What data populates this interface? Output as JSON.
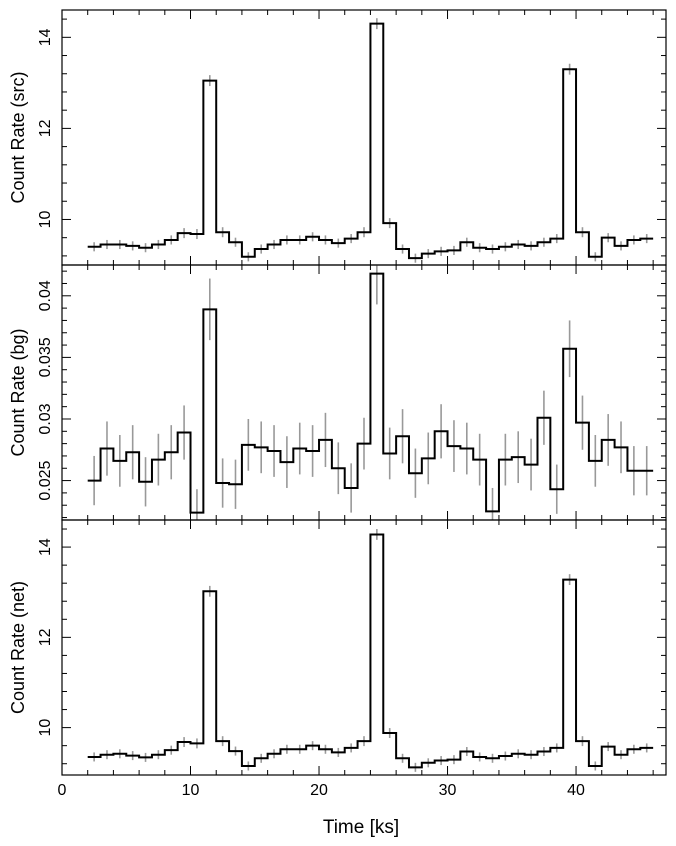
{
  "figure": {
    "xlabel": "Time [ks]",
    "line_color": "#000000",
    "error_color": "#999999"
  },
  "chart_data": [
    {
      "type": "line",
      "title": "",
      "xlabel": "Time [ks]",
      "ylabel": "Count Rate (src)",
      "xlim": [
        0,
        47
      ],
      "ylim": [
        9.0,
        14.6
      ],
      "xticks": [
        0,
        10,
        20,
        30,
        40
      ],
      "yticks": [
        10,
        12,
        14
      ],
      "yticks_label": [
        "10",
        "12",
        "14"
      ],
      "bin_width": 1,
      "x": [
        2.5,
        3.5,
        4.5,
        5.5,
        6.5,
        7.5,
        8.5,
        9.5,
        10.5,
        11.5,
        12.5,
        13.5,
        14.5,
        15.5,
        16.5,
        17.5,
        18.5,
        19.5,
        20.5,
        21.5,
        22.5,
        23.5,
        24.5,
        25.5,
        26.5,
        27.5,
        28.5,
        29.5,
        30.5,
        31.5,
        32.5,
        33.5,
        34.5,
        35.5,
        36.5,
        37.5,
        38.5,
        39.5,
        40.5,
        41.5,
        42.5,
        43.5,
        44.5,
        45.5
      ],
      "y": [
        9.4,
        9.45,
        9.45,
        9.42,
        9.38,
        9.45,
        9.55,
        9.7,
        9.68,
        13.05,
        9.72,
        9.5,
        9.18,
        9.35,
        9.45,
        9.55,
        9.55,
        9.62,
        9.55,
        9.48,
        9.58,
        9.72,
        14.3,
        9.92,
        9.35,
        9.15,
        9.25,
        9.3,
        9.32,
        9.5,
        9.38,
        9.35,
        9.4,
        9.45,
        9.42,
        9.5,
        9.58,
        13.3,
        9.72,
        9.18,
        9.6,
        9.42,
        9.55,
        9.58
      ],
      "yerr": [
        0.1,
        0.1,
        0.1,
        0.1,
        0.1,
        0.1,
        0.1,
        0.11,
        0.11,
        0.12,
        0.11,
        0.1,
        0.1,
        0.1,
        0.1,
        0.1,
        0.1,
        0.1,
        0.1,
        0.1,
        0.1,
        0.11,
        0.12,
        0.11,
        0.1,
        0.1,
        0.1,
        0.1,
        0.1,
        0.1,
        0.1,
        0.1,
        0.1,
        0.1,
        0.1,
        0.1,
        0.1,
        0.12,
        0.11,
        0.1,
        0.1,
        0.1,
        0.1,
        0.1
      ]
    },
    {
      "type": "line",
      "title": "",
      "xlabel": "Time [ks]",
      "ylabel": "Count Rate (bg)",
      "xlim": [
        0,
        47
      ],
      "ylim": [
        0.0218,
        0.0425
      ],
      "xticks": [
        0,
        10,
        20,
        30,
        40
      ],
      "yticks": [
        0.025,
        0.03,
        0.035,
        0.04
      ],
      "yticks_label": [
        "0.025",
        "0.03",
        "0.035",
        "0.04"
      ],
      "bin_width": 1,
      "x": [
        2.5,
        3.5,
        4.5,
        5.5,
        6.5,
        7.5,
        8.5,
        9.5,
        10.5,
        11.5,
        12.5,
        13.5,
        14.5,
        15.5,
        16.5,
        17.5,
        18.5,
        19.5,
        20.5,
        21.5,
        22.5,
        23.5,
        24.5,
        25.5,
        26.5,
        27.5,
        28.5,
        29.5,
        30.5,
        31.5,
        32.5,
        33.5,
        34.5,
        35.5,
        36.5,
        37.5,
        38.5,
        39.5,
        40.5,
        41.5,
        42.5,
        43.5,
        44.5,
        45.5
      ],
      "y": [
        0.025,
        0.0276,
        0.0266,
        0.0273,
        0.0249,
        0.0267,
        0.0273,
        0.0289,
        0.0224,
        0.0389,
        0.0248,
        0.0247,
        0.0279,
        0.0277,
        0.0274,
        0.0265,
        0.0276,
        0.0274,
        0.0283,
        0.026,
        0.0244,
        0.028,
        0.0418,
        0.0272,
        0.0286,
        0.0256,
        0.0268,
        0.029,
        0.0278,
        0.0276,
        0.0267,
        0.0225,
        0.0267,
        0.0269,
        0.0263,
        0.0301,
        0.0243,
        0.0357,
        0.0297,
        0.0266,
        0.0283,
        0.0277,
        0.0258,
        0.0258
      ],
      "yerr": [
        0.002,
        0.0022,
        0.0021,
        0.0022,
        0.002,
        0.0021,
        0.0022,
        0.0022,
        0.0019,
        0.0025,
        0.002,
        0.002,
        0.0021,
        0.0021,
        0.0021,
        0.0021,
        0.0021,
        0.0021,
        0.0022,
        0.0021,
        0.002,
        0.0021,
        0.0025,
        0.0021,
        0.0022,
        0.002,
        0.0021,
        0.0022,
        0.0021,
        0.0021,
        0.0021,
        0.0019,
        0.0021,
        0.0021,
        0.0021,
        0.0022,
        0.002,
        0.0023,
        0.0022,
        0.0021,
        0.0021,
        0.0021,
        0.002,
        0.002
      ]
    },
    {
      "type": "line",
      "title": "",
      "xlabel": "Time [ks]",
      "ylabel": "Count Rate (net)",
      "xlim": [
        0,
        47
      ],
      "ylim": [
        8.95,
        14.6
      ],
      "xticks": [
        0,
        10,
        20,
        30,
        40
      ],
      "yticks": [
        10,
        12,
        14
      ],
      "yticks_label": [
        "10",
        "12",
        "14"
      ],
      "bin_width": 1,
      "x": [
        2.5,
        3.5,
        4.5,
        5.5,
        6.5,
        7.5,
        8.5,
        9.5,
        10.5,
        11.5,
        12.5,
        13.5,
        14.5,
        15.5,
        16.5,
        17.5,
        18.5,
        19.5,
        20.5,
        21.5,
        22.5,
        23.5,
        24.5,
        25.5,
        26.5,
        27.5,
        28.5,
        29.5,
        30.5,
        31.5,
        32.5,
        33.5,
        34.5,
        35.5,
        36.5,
        37.5,
        38.5,
        39.5,
        40.5,
        41.5,
        42.5,
        43.5,
        44.5,
        45.5
      ],
      "y": [
        9.35,
        9.4,
        9.42,
        9.38,
        9.34,
        9.4,
        9.5,
        9.68,
        9.65,
        13.02,
        9.7,
        9.48,
        9.15,
        9.32,
        9.42,
        9.52,
        9.52,
        9.6,
        9.52,
        9.45,
        9.55,
        9.7,
        14.28,
        9.88,
        9.32,
        9.12,
        9.22,
        9.27,
        9.29,
        9.47,
        9.35,
        9.32,
        9.37,
        9.42,
        9.4,
        9.47,
        9.55,
        13.28,
        9.7,
        9.15,
        9.58,
        9.4,
        9.52,
        9.55
      ],
      "yerr": [
        0.1,
        0.1,
        0.1,
        0.1,
        0.1,
        0.1,
        0.1,
        0.11,
        0.11,
        0.12,
        0.11,
        0.1,
        0.1,
        0.1,
        0.1,
        0.1,
        0.1,
        0.1,
        0.1,
        0.1,
        0.1,
        0.11,
        0.12,
        0.11,
        0.1,
        0.1,
        0.1,
        0.1,
        0.1,
        0.1,
        0.1,
        0.1,
        0.1,
        0.1,
        0.1,
        0.1,
        0.1,
        0.12,
        0.11,
        0.1,
        0.1,
        0.1,
        0.1,
        0.1
      ]
    }
  ]
}
